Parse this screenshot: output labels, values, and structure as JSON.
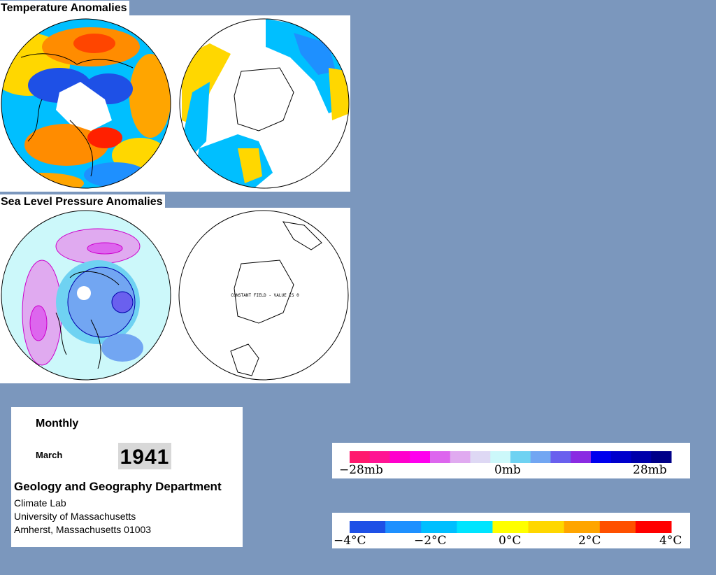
{
  "sections": {
    "temperature_title": "Temperature Anomalies",
    "pressure_title": "Sea Level Pressure Anomalies",
    "constant_field_label": "CONSTANT FIELD - VALUE IS 0"
  },
  "info": {
    "period": "Monthly",
    "month": "March",
    "year": "1941",
    "department": "Geology and Geography Department",
    "lab": "Climate Lab",
    "university": "University of Massachusetts",
    "address": "Amherst, Massachusetts 01003"
  },
  "pressure_legend": {
    "labels": [
      "−28mb",
      "0mb",
      "28mb"
    ],
    "colors": [
      "#ff1a6e",
      "#ff1493",
      "#ff00cc",
      "#ff00ee",
      "#dd66ee",
      "#e0aaf0",
      "#ded8f4",
      "#ccf8fa",
      "#6fd2f2",
      "#72a6f2",
      "#6a60ee",
      "#8a2be2",
      "#0000ee",
      "#0000cc",
      "#0000aa",
      "#000088"
    ]
  },
  "temperature_legend": {
    "labels": [
      "−4°C",
      "−2°C",
      "0°C",
      "2°C",
      "4°C"
    ],
    "colors": [
      "#1e50e6",
      "#1e90ff",
      "#00bfff",
      "#00e5ff",
      "#ffff00",
      "#ffd700",
      "#ffa500",
      "#ff5000",
      "#ff0000"
    ]
  }
}
